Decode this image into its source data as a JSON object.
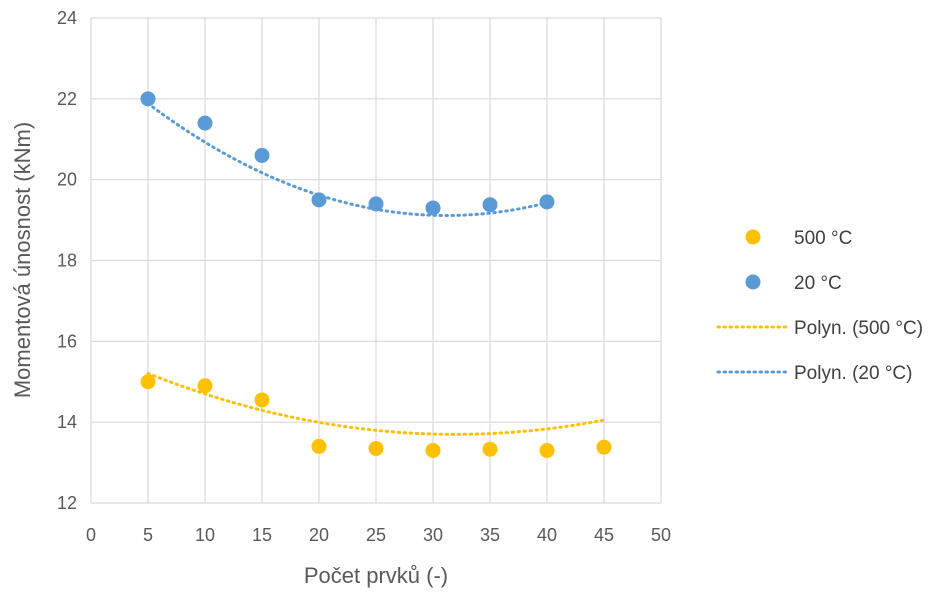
{
  "chart_data": {
    "type": "scatter",
    "xlabel": "Počet prvků (-)",
    "ylabel": "Momentová únosnost (kNm)",
    "xlim": [
      0,
      50
    ],
    "ylim": [
      12,
      24
    ],
    "xticks": [
      0,
      5,
      10,
      15,
      20,
      25,
      30,
      35,
      40,
      45,
      50
    ],
    "yticks": [
      12,
      14,
      16,
      18,
      20,
      22,
      24
    ],
    "grid": true,
    "legend_position": "right",
    "series": [
      {
        "name": "500 °C",
        "color": "#FFC000",
        "x": [
          5,
          10,
          15,
          20,
          25,
          30,
          35,
          40,
          45
        ],
        "y": [
          15.0,
          14.9,
          14.55,
          13.4,
          13.35,
          13.3,
          13.33,
          13.3,
          13.38
        ]
      },
      {
        "name": "20 °C",
        "color": "#5B9BD5",
        "x": [
          5,
          10,
          15,
          20,
          25,
          30,
          35,
          40
        ],
        "y": [
          22.0,
          21.4,
          20.6,
          19.5,
          19.4,
          19.3,
          19.38,
          19.45
        ]
      }
    ],
    "trendlines": [
      {
        "name": "Polyn. (500 °C)",
        "color": "#FFC000",
        "style": "dotted",
        "x_range": [
          5,
          45
        ],
        "coefficients": [
          15.818,
          -0.13273,
          0.0020779
        ]
      },
      {
        "name": "Polyn. (20 °C)",
        "color": "#5B9BD5",
        "style": "dotted",
        "x_range": [
          5,
          40
        ],
        "coefficients": [
          23.045,
          -0.2523,
          0.0040476
        ]
      }
    ]
  }
}
